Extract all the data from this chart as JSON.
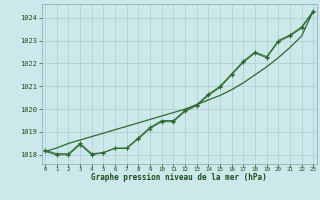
{
  "xlabel": "Graphe pression niveau de la mer (hPa)",
  "hours": [
    0,
    1,
    2,
    3,
    4,
    5,
    6,
    7,
    8,
    9,
    10,
    11,
    12,
    13,
    14,
    15,
    16,
    17,
    18,
    19,
    20,
    21,
    22,
    23
  ],
  "line_jagged1": [
    1018.2,
    1018.05,
    1018.05,
    1018.5,
    1018.05,
    1018.1,
    1018.3,
    1018.3,
    1018.75,
    1019.2,
    1019.5,
    1019.5,
    1019.95,
    1020.2,
    1020.65,
    1021.0,
    1021.55,
    1022.1,
    1022.5,
    1022.3,
    1023.0,
    1023.25,
    1023.6,
    1024.3
  ],
  "line_jagged2": [
    1018.15,
    1018.0,
    1018.0,
    1018.45,
    1018.0,
    1018.1,
    1018.28,
    1018.28,
    1018.7,
    1019.15,
    1019.45,
    1019.45,
    1019.9,
    1020.15,
    1020.6,
    1020.95,
    1021.5,
    1022.05,
    1022.45,
    1022.25,
    1022.95,
    1023.2,
    1023.55,
    1024.25
  ],
  "line_smooth": [
    1018.15,
    1018.3,
    1018.5,
    1018.65,
    1018.8,
    1018.95,
    1019.1,
    1019.25,
    1019.4,
    1019.55,
    1019.7,
    1019.85,
    1020.0,
    1020.2,
    1020.4,
    1020.6,
    1020.85,
    1021.15,
    1021.5,
    1021.85,
    1022.25,
    1022.7,
    1023.2,
    1024.3
  ],
  "line_color": "#2d6a2d",
  "bg_color": "#cce8ea",
  "grid_color": "#aacdd0",
  "text_color": "#1a4d1a",
  "ylim_min": 1017.6,
  "ylim_max": 1024.6,
  "yticks": [
    1018,
    1019,
    1020,
    1021,
    1022,
    1023,
    1024
  ]
}
